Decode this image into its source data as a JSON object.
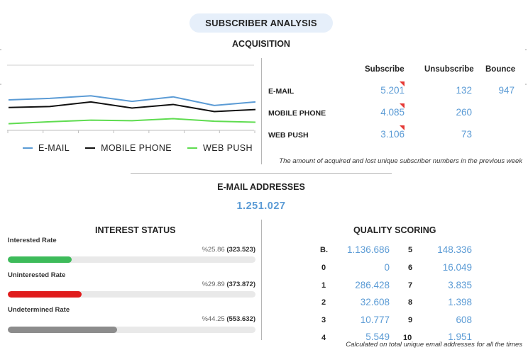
{
  "header": {
    "title": "SUBSCRIBER ANALYSIS"
  },
  "acquisition": {
    "title": "ACQUISITION",
    "columns": [
      "Subscribe",
      "Unsubscribe",
      "Bounce"
    ],
    "rows": [
      {
        "label": "E-MAIL",
        "subscribe": "5.201",
        "unsubscribe": "132",
        "bounce": "947",
        "flag": true
      },
      {
        "label": "MOBILE PHONE",
        "subscribe": "4.085",
        "unsubscribe": "260",
        "bounce": "",
        "flag": true
      },
      {
        "label": "WEB PUSH",
        "subscribe": "3.106",
        "unsubscribe": "73",
        "bounce": "",
        "flag": true
      }
    ],
    "note": "The amount of acquired and lost unique subscriber numbers in the previous week"
  },
  "chart_data": {
    "type": "line",
    "title": "",
    "xlabel": "",
    "ylabel": "",
    "x": [
      1,
      2,
      3,
      4,
      5,
      6,
      7
    ],
    "grid": false,
    "legend_position": "bottom",
    "series": [
      {
        "name": "E-MAIL",
        "color": "#5b9bd5",
        "values": [
          60,
          63,
          68,
          57,
          66,
          49,
          56
        ]
      },
      {
        "name": "MOBILE PHONE",
        "color": "#111111",
        "values": [
          45,
          47,
          56,
          44,
          51,
          37,
          41
        ]
      },
      {
        "name": "WEB PUSH",
        "color": "#5fdc50",
        "values": [
          13,
          17,
          20,
          19,
          23,
          18,
          16
        ]
      }
    ],
    "ylim": [
      0,
      120
    ]
  },
  "email_addresses": {
    "title": "E-MAIL ADDRESSES",
    "total": "1.251.027"
  },
  "interest_status": {
    "title": "INTEREST STATUS",
    "rates": [
      {
        "label": "Interested Rate",
        "percent": "%25.86",
        "count": "(323.523)",
        "fraction": 0.2586,
        "color": "#3dbb5a"
      },
      {
        "label": "Uninterested Rate",
        "percent": "%29.89",
        "count": "(373.872)",
        "fraction": 0.2989,
        "color": "#e01b1b"
      },
      {
        "label": "Undetermined Rate",
        "percent": "%44.25",
        "count": "(553.632)",
        "fraction": 0.4425,
        "color": "#8c8c8c"
      }
    ]
  },
  "quality_scoring": {
    "title": "QUALITY SCORING",
    "left": [
      {
        "key": "B.",
        "value": "1.136.686"
      },
      {
        "key": "0",
        "value": "0"
      },
      {
        "key": "1",
        "value": "286.428"
      },
      {
        "key": "2",
        "value": "32.608"
      },
      {
        "key": "3",
        "value": "10.777"
      },
      {
        "key": "4",
        "value": "5.549"
      }
    ],
    "right": [
      {
        "key": "5",
        "value": "148.336"
      },
      {
        "key": "6",
        "value": "16.049"
      },
      {
        "key": "7",
        "value": "3.835"
      },
      {
        "key": "8",
        "value": "1.398"
      },
      {
        "key": "9",
        "value": "608"
      },
      {
        "key": "10",
        "value": "1.951"
      }
    ],
    "note": "Calculated on total unique email addresses for all the times"
  }
}
